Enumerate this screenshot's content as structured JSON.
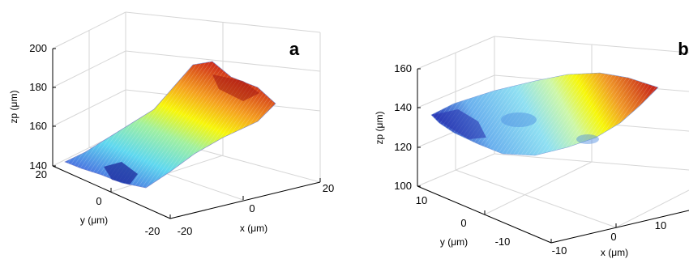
{
  "chart_data": [
    {
      "type": "surface",
      "panel_label": "a",
      "xlabel": "x (μm)",
      "ylabel": "y (μm)",
      "zlabel": "zp (μm)",
      "x_ticks": [
        "-20",
        "0",
        "20"
      ],
      "y_ticks": [
        "-20",
        "0",
        "20"
      ],
      "z_ticks": [
        "140",
        "160",
        "180",
        "200"
      ],
      "xlim": [
        -20,
        20
      ],
      "ylim": [
        -20,
        20
      ],
      "zlim": [
        140,
        200
      ],
      "colormap": "jet",
      "grid": true,
      "colors": {
        "low": "#1a2fcf",
        "mid": "#f7f70a",
        "high": "#d11a1a"
      }
    },
    {
      "type": "surface",
      "panel_label": "b",
      "xlabel": "x (μm)",
      "ylabel": "y (μm)",
      "zlabel": "zp (μm)",
      "x_ticks": [
        "-10",
        "0",
        "10"
      ],
      "y_ticks": [
        "-10",
        "0",
        "10"
      ],
      "z_ticks": [
        "100",
        "120",
        "140",
        "160"
      ],
      "xlim": [
        -10,
        10
      ],
      "ylim": [
        -10,
        10
      ],
      "zlim": [
        100,
        160
      ],
      "colormap": "jet",
      "grid": true,
      "colors": {
        "low": "#1a2fcf",
        "mid": "#f7f70a",
        "high": "#d11a1a"
      }
    }
  ]
}
